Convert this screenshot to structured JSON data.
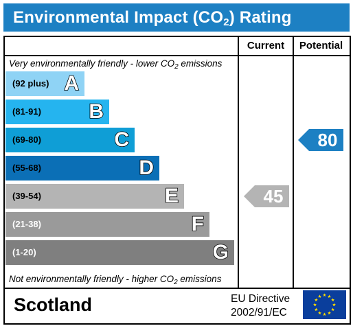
{
  "header": {
    "title_main": "Environmental Impact (CO",
    "title_sub": "2",
    "title_end": ") Rating"
  },
  "columns": {
    "current": "Current",
    "potential": "Potential"
  },
  "notes": {
    "top_a": "Very environmentally friendly - lower CO",
    "top_sub": "2",
    "top_b": " emissions",
    "bottom_a": "Not environmentally friendly - higher CO",
    "bottom_sub": "2",
    "bottom_b": " emissions"
  },
  "footer": {
    "region": "Scotland",
    "directive_line1": "EU Directive",
    "directive_line2": "2002/91/EC"
  },
  "chart_data": {
    "type": "bar",
    "title": "Environmental Impact (CO2) Rating",
    "categories": [
      "A",
      "B",
      "C",
      "D",
      "E",
      "F",
      "G"
    ],
    "ranges": [
      "(92 plus)",
      "(81-91)",
      "(69-80)",
      "(55-68)",
      "(39-54)",
      "(21-38)",
      "(1-20)"
    ],
    "colors": [
      "#8fd3f5",
      "#25b4ef",
      "#0f9ed6",
      "#0b6fb6",
      "#b4b4b4",
      "#9a9a9a",
      "#7f7f7f"
    ],
    "range_text_colors": [
      "#000000",
      "#000000",
      "#000000",
      "#000000",
      "#000000",
      "#ffffff",
      "#ffffff"
    ],
    "current": {
      "value": 45,
      "label": "45",
      "band": "E",
      "color": "#b4b4b4"
    },
    "potential": {
      "value": 80,
      "label": "80",
      "band": "C",
      "color": "#1d80c3"
    }
  }
}
